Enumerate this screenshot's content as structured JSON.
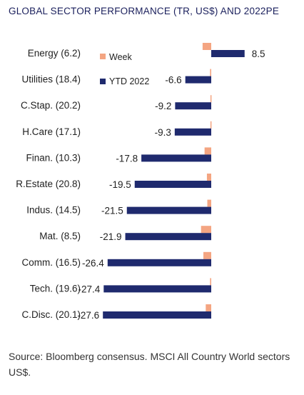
{
  "title": "GLOBAL SECTOR PERFORMANCE (TR, US$) AND 2022PE",
  "source": "Source: Bloomberg consensus. MSCI All Country World sectors US$.",
  "colors": {
    "week": "#F4A582",
    "ytd": "#1F2A6E",
    "title": "#1A1F5C",
    "text": "#222222"
  },
  "chart_data": {
    "type": "bar",
    "orientation": "horizontal",
    "categories": [
      "Energy (6.2)",
      "Utilities (18.4)",
      "C.Stap. (20.2)",
      "H.Care (17.1)",
      "Finan. (10.3)",
      "R.Estate (20.8)",
      "Indus. (14.5)",
      "Mat. (8.5)",
      "Comm. (16.5)",
      "Tech. (19.6)",
      "C.Disc. (20.1)"
    ],
    "series": [
      {
        "name": "Week",
        "values": [
          -2.2,
          -0.3,
          -0.2,
          -0.2,
          -1.7,
          -1.1,
          -1.0,
          -2.6,
          -2.0,
          -0.3,
          -1.4
        ]
      },
      {
        "name": "YTD 2022",
        "values": [
          8.5,
          -6.6,
          -9.2,
          -9.3,
          -17.8,
          -19.5,
          -21.5,
          -21.9,
          -26.4,
          -27.4,
          -27.6
        ]
      }
    ],
    "data_labels": [
      "8.5",
      "-6.6",
      "-9.2",
      "-9.3",
      "-17.8",
      "-19.5",
      "-21.5",
      "-21.9",
      "-26.4",
      "-27.4",
      "-27.6"
    ],
    "legend": [
      "Week",
      "YTD 2022"
    ],
    "legend_position": "top-left",
    "grid": false
  }
}
